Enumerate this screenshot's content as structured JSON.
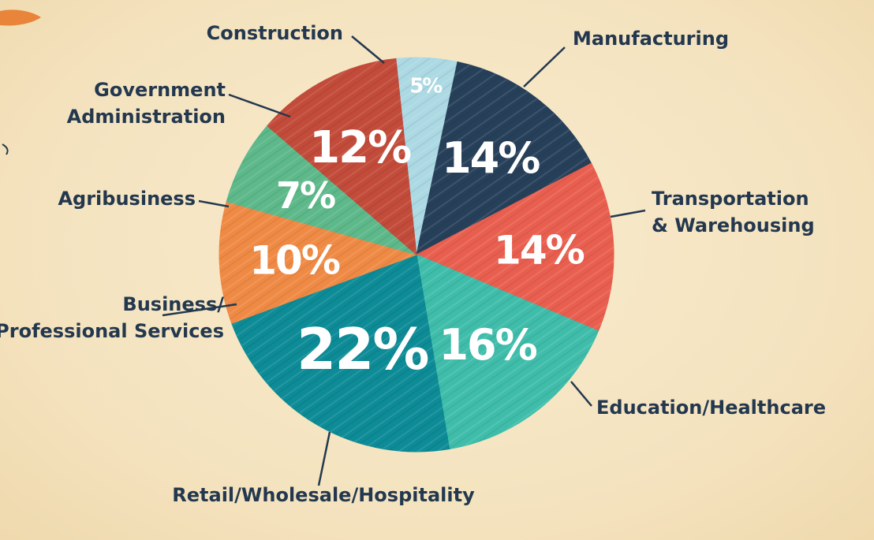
{
  "chart_data": {
    "type": "pie",
    "slices": [
      {
        "label": "Construction",
        "value": 5,
        "value_label": "5%",
        "color": "#acd9e3"
      },
      {
        "label": "Manufacturing",
        "value": 14,
        "value_label": "14%",
        "color": "#27405a"
      },
      {
        "label": "Transportation & Warehousing",
        "label_lines": [
          "Transportation",
          "& Warehousing"
        ],
        "value": 14,
        "value_label": "14%",
        "color": "#e95f4f"
      },
      {
        "label": "Education/Healthcare",
        "value": 16,
        "value_label": "16%",
        "color": "#3fbdaa"
      },
      {
        "label": "Retail/Wholesale/Hospitality",
        "value": 22,
        "value_label": "22%",
        "color": "#0d8b96"
      },
      {
        "label": "Business/ Professional Services",
        "label_lines": [
          "Business/",
          "Professional Services"
        ],
        "value": 10,
        "value_label": "10%",
        "color": "#ef8a45"
      },
      {
        "label": "Agribusiness",
        "value": 7,
        "value_label": "7%",
        "color": "#5db88a"
      },
      {
        "label": "Government Administration",
        "label_lines": [
          "Government",
          "Administration"
        ],
        "value": 12,
        "value_label": "12%",
        "color": "#c24b3a"
      }
    ],
    "legend": "callout-labels"
  },
  "colors": {
    "background": "#f6e6c4",
    "label_text": "#23384f",
    "value_text": "#ffffff",
    "decor_orange": "#e8853a"
  }
}
